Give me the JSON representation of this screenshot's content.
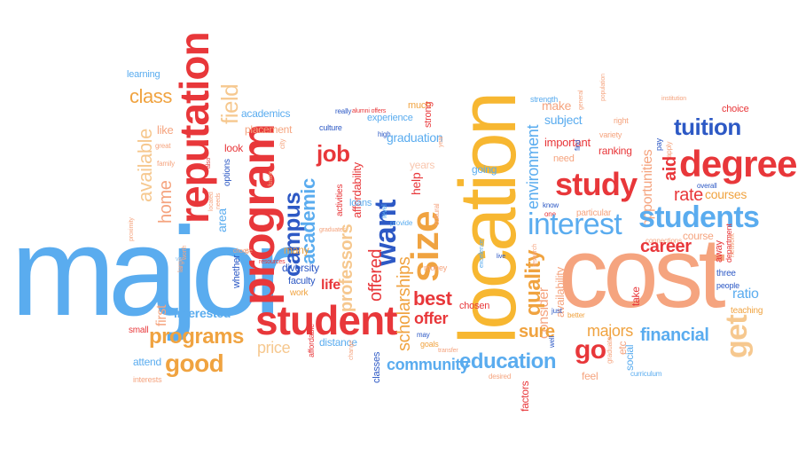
{
  "words": {
    "major": "major",
    "location": "location",
    "cost": "cost",
    "student": "student",
    "program": "program",
    "reputation": "reputation",
    "want": "want",
    "size": "size",
    "degree": "degree",
    "study": "study",
    "students": "students",
    "interest": "interest",
    "tuition": "tuition",
    "education": "education",
    "good": "good",
    "programs": "programs",
    "field": "field",
    "academic": "academic",
    "campus": "campus",
    "job": "job",
    "financial": "financial",
    "career": "career",
    "get": "get",
    "majors": "majors",
    "community": "community",
    "best": "best",
    "offer": "offer",
    "quality": "quality",
    "sure": "sure",
    "go": "go",
    "available": "available",
    "class": "class",
    "home": "home",
    "interested": "interested",
    "price": "price",
    "learning": "learning",
    "academics": "academics",
    "placement": "placement",
    "like": "like",
    "look": "look",
    "options": "options",
    "area": "area",
    "graduation": "graduation",
    "environment": "environment",
    "important": "important",
    "ranking": "ranking",
    "make": "make",
    "subject": "subject",
    "choice": "choice",
    "rate": "rate",
    "opportunities": "opportunities",
    "aid": "aid",
    "courses": "courses",
    "ratio": "ratio",
    "teaching": "teaching",
    "etc": "etc",
    "consider": "consider",
    "availability": "availability",
    "scholarships": "scholarships",
    "offered": "offered",
    "professors": "professors",
    "life": "life",
    "diversity": "diversity",
    "faculty": "faculty",
    "many": "many",
    "work": "work",
    "distance": "distance",
    "chosen": "chosen",
    "help": "help",
    "need": "need",
    "find": "find",
    "variety": "variety",
    "pay": "pay",
    "apply": "apply",
    "department": "department",
    "three": "three",
    "people": "people",
    "away": "away",
    "social": "social",
    "feel": "feel",
    "factors": "factors",
    "classes": "classes",
    "attend": "attend",
    "small": "small",
    "first": "first",
    "interests": "interests",
    "family": "family",
    "great": "great",
    "culture": "culture",
    "really": "really",
    "experience": "experience",
    "much": "much",
    "strong": "strong",
    "going": "going",
    "years": "years",
    "affordability": "affordability",
    "activities": "activities",
    "loans": "loans",
    "money": "money",
    "level": "level",
    "cultural": "cultural",
    "particular": "particular",
    "know": "know",
    "one": "one",
    "research": "research",
    "course": "course",
    "take": "take",
    "better": "better",
    "just": "just",
    "well": "well",
    "may": "may",
    "goals": "goals",
    "desired": "desired",
    "affordable": "affordable",
    "whether": "whether",
    "needs": "needs",
    "also": "also",
    "alumni_offers": "alumni offers",
    "high": "high",
    "network": "network",
    "connections": "connections",
    "institution": "institution",
    "right": "right",
    "general": "general",
    "population": "population",
    "overall": "overall",
    "graduate": "graduate",
    "curriculum": "curriculum",
    "transfer": "transfer",
    "change": "change",
    "city": "city",
    "future": "future",
    "graduates": "graduates",
    "resources": "resources",
    "choose": "choose",
    "vs": "vs",
    "large": "large",
    "proximity": "proximity",
    "excellence": "excellence",
    "live": "live",
    "year": "year",
    "strength": "strength",
    "worth": "worth",
    "provide": "provide",
    "located": "located"
  }
}
